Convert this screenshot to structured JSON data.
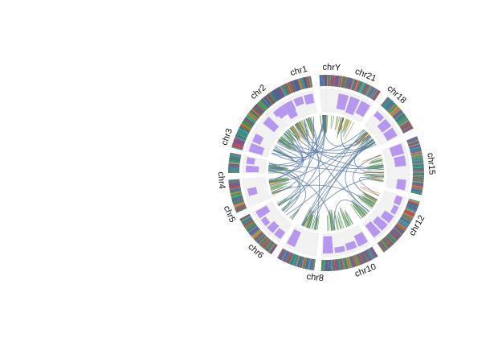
{
  "figure": {
    "chromosomes": [
      {
        "name": "chr1",
        "start_deg": 296,
        "end_deg": 351
      },
      {
        "name": "chrY",
        "start_deg": 356,
        "end_deg": 360
      },
      {
        "name": "chr21",
        "start_deg": 0,
        "end_deg": 34
      },
      {
        "name": "chr18",
        "start_deg": 39,
        "end_deg": 63
      },
      {
        "name": "chr15",
        "start_deg": 68,
        "end_deg": 103
      },
      {
        "name": "chr12",
        "start_deg": 107,
        "end_deg": 144
      },
      {
        "name": "chr10",
        "start_deg": 148,
        "end_deg": 183
      },
      {
        "name": "chr8",
        "start_deg": 187,
        "end_deg": 210
      },
      {
        "name": "chr6",
        "start_deg": 214,
        "end_deg": 242
      },
      {
        "name": "chr5",
        "start_deg": 246,
        "end_deg": 266
      },
      {
        "name": "chr4",
        "start_deg": 270,
        "end_deg": 282
      },
      {
        "name": "chr3",
        "start_deg": 285,
        "end_deg": 315
      },
      {
        "name": "chr2",
        "start_deg": 318,
        "end_deg": 351
      }
    ],
    "label_positions_deg": {
      "chr1": 345,
      "chrY": 3,
      "chr21": 22,
      "chr18": 42,
      "chr15": 85,
      "chr12": 120,
      "chr10": 158,
      "chr8": 186,
      "chr6": 222,
      "chr5": 247,
      "chr4": 266,
      "chr3": 290,
      "chr2": 320
    },
    "outer_band_colors": [
      "#3d7ea6",
      "#2a8a6a",
      "#5a5f9e",
      "#9c4a6a",
      "#6b8b3a",
      "#c8823a",
      "#7a4a8a",
      "#2f6f9f",
      "#b04a4a",
      "#4a9a8a"
    ],
    "histogram_color": "#b597f0",
    "link_colors": {
      "intra": "#4a8a4a",
      "inter": "#5a7aaa",
      "accent": "#d68a2a"
    }
  }
}
